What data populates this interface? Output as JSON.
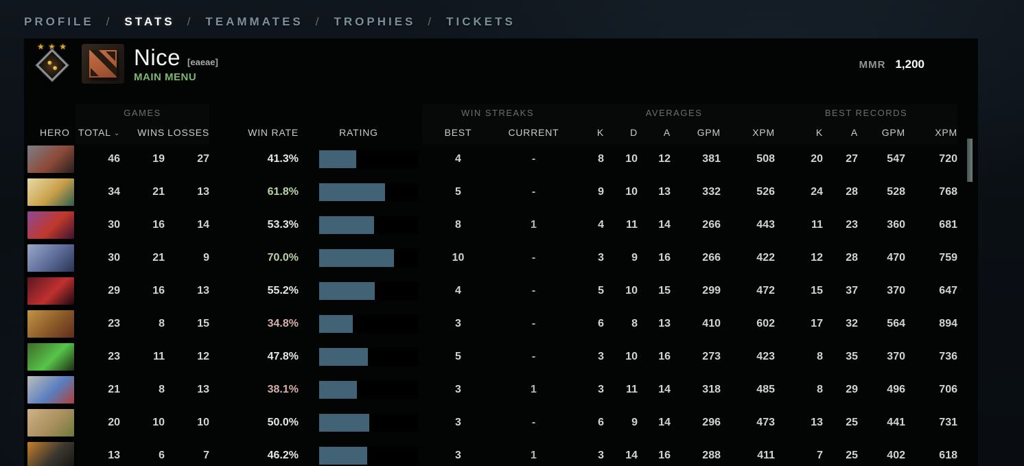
{
  "nav": {
    "separator": "/",
    "items": [
      {
        "label": "PROFILE",
        "active": false
      },
      {
        "label": "STATS",
        "active": true
      },
      {
        "label": "TEAMMATES",
        "active": false
      },
      {
        "label": "TROPHIES",
        "active": false
      },
      {
        "label": "TICKETS",
        "active": false
      }
    ]
  },
  "profile": {
    "name": "Nice",
    "tag": "[eaeae]",
    "status": "MAIN MENU",
    "mmr_label": "MMR",
    "mmr_value": "1,200"
  },
  "table": {
    "groups": {
      "games": "GAMES",
      "win_streaks": "WIN STREAKS",
      "averages": "AVERAGES",
      "best_records": "BEST RECORDS"
    },
    "columns": {
      "hero": "HERO",
      "total": "TOTAL",
      "wins": "WINS",
      "losses": "LOSSES",
      "win_rate": "WIN RATE",
      "rating": "RATING",
      "best": "BEST",
      "current": "CURRENT",
      "k": "K",
      "d": "D",
      "a": "A",
      "gpm": "GPM",
      "xpm": "XPM"
    },
    "sort_indicator_column": "total",
    "rows": [
      {
        "icon_colors": [
          "#7b7f86",
          "#8e4a38",
          "#23201f"
        ],
        "total": 46,
        "wins": 19,
        "losses": 27,
        "win_rate": "41.3%",
        "tone": "mid",
        "rating_pct": 37,
        "best": 4,
        "current": "-",
        "k": 8,
        "d": 10,
        "a": 12,
        "gpm": 381,
        "xpm": 508,
        "rk": 20,
        "ra": 27,
        "rgpm": 547,
        "rxpm": 720
      },
      {
        "icon_colors": [
          "#e8d9a8",
          "#c9a04a",
          "#2e5c4e"
        ],
        "total": 34,
        "wins": 21,
        "losses": 13,
        "win_rate": "61.8%",
        "tone": "high",
        "rating_pct": 66,
        "best": 5,
        "current": "-",
        "k": 9,
        "d": 10,
        "a": 13,
        "gpm": 332,
        "xpm": 526,
        "rk": 24,
        "ra": 28,
        "rgpm": 528,
        "rxpm": 768
      },
      {
        "icon_colors": [
          "#8a4a96",
          "#c0392b",
          "#3a1430"
        ],
        "total": 30,
        "wins": 16,
        "losses": 14,
        "win_rate": "53.3%",
        "tone": "mid",
        "rating_pct": 55,
        "best": 8,
        "current": "1",
        "k": 4,
        "d": 11,
        "a": 14,
        "gpm": 266,
        "xpm": 443,
        "rk": 11,
        "ra": 23,
        "rgpm": 360,
        "rxpm": 681
      },
      {
        "icon_colors": [
          "#9aa8c8",
          "#5a6a96",
          "#2a3350"
        ],
        "total": 30,
        "wins": 21,
        "losses": 9,
        "win_rate": "70.0%",
        "tone": "high",
        "rating_pct": 75,
        "best": 10,
        "current": "-",
        "k": 3,
        "d": 9,
        "a": 16,
        "gpm": 266,
        "xpm": 422,
        "rk": 12,
        "ra": 28,
        "rgpm": 470,
        "rxpm": 759
      },
      {
        "icon_colors": [
          "#5a1822",
          "#c03030",
          "#1a0a10"
        ],
        "total": 29,
        "wins": 16,
        "losses": 13,
        "win_rate": "55.2%",
        "tone": "mid",
        "rating_pct": 56,
        "best": 4,
        "current": "-",
        "k": 5,
        "d": 10,
        "a": 15,
        "gpm": 299,
        "xpm": 472,
        "rk": 15,
        "ra": 37,
        "rgpm": 370,
        "rxpm": 647
      },
      {
        "icon_colors": [
          "#c29347",
          "#8a5a28",
          "#5e2c20"
        ],
        "total": 23,
        "wins": 8,
        "losses": 15,
        "win_rate": "34.8%",
        "tone": "low",
        "rating_pct": 34,
        "best": 3,
        "current": "-",
        "k": 6,
        "d": 8,
        "a": 13,
        "gpm": 410,
        "xpm": 602,
        "rk": 17,
        "ra": 32,
        "rgpm": 564,
        "rxpm": 894
      },
      {
        "icon_colors": [
          "#3f6a2a",
          "#57c44a",
          "#1d2e14"
        ],
        "total": 23,
        "wins": 11,
        "losses": 12,
        "win_rate": "47.8%",
        "tone": "mid",
        "rating_pct": 49,
        "best": 5,
        "current": "-",
        "k": 3,
        "d": 10,
        "a": 16,
        "gpm": 273,
        "xpm": 423,
        "rk": 8,
        "ra": 35,
        "rgpm": 370,
        "rxpm": 736
      },
      {
        "icon_colors": [
          "#bdbdb9",
          "#5a7ec0",
          "#b04038"
        ],
        "total": 21,
        "wins": 8,
        "losses": 13,
        "win_rate": "38.1%",
        "tone": "low",
        "rating_pct": 38,
        "best": 3,
        "current": "1",
        "k": 3,
        "d": 11,
        "a": 14,
        "gpm": 318,
        "xpm": 485,
        "rk": 8,
        "ra": 29,
        "rgpm": 496,
        "rxpm": 706
      },
      {
        "icon_colors": [
          "#cdb386",
          "#a98f5e",
          "#6e7a3a"
        ],
        "total": 20,
        "wins": 10,
        "losses": 10,
        "win_rate": "50.0%",
        "tone": "mid",
        "rating_pct": 50,
        "best": 3,
        "current": "-",
        "k": 6,
        "d": 9,
        "a": 14,
        "gpm": 296,
        "xpm": 473,
        "rk": 13,
        "ra": 25,
        "rgpm": 441,
        "rxpm": 731
      },
      {
        "icon_colors": [
          "#c57f2e",
          "#3a372f",
          "#151310"
        ],
        "total": 13,
        "wins": 6,
        "losses": 7,
        "win_rate": "46.2%",
        "tone": "mid",
        "rating_pct": 48,
        "best": 3,
        "current": "1",
        "k": 3,
        "d": 14,
        "a": 16,
        "gpm": 288,
        "xpm": 411,
        "rk": 7,
        "ra": 25,
        "rgpm": 402,
        "rxpm": 618
      }
    ]
  },
  "colors": {
    "rate_high": "#b9d3a6",
    "rate_mid": "#e6e6e6",
    "rate_low": "#d9afab",
    "bar_fill": "#426376",
    "accent_green": "#7cb96f"
  }
}
